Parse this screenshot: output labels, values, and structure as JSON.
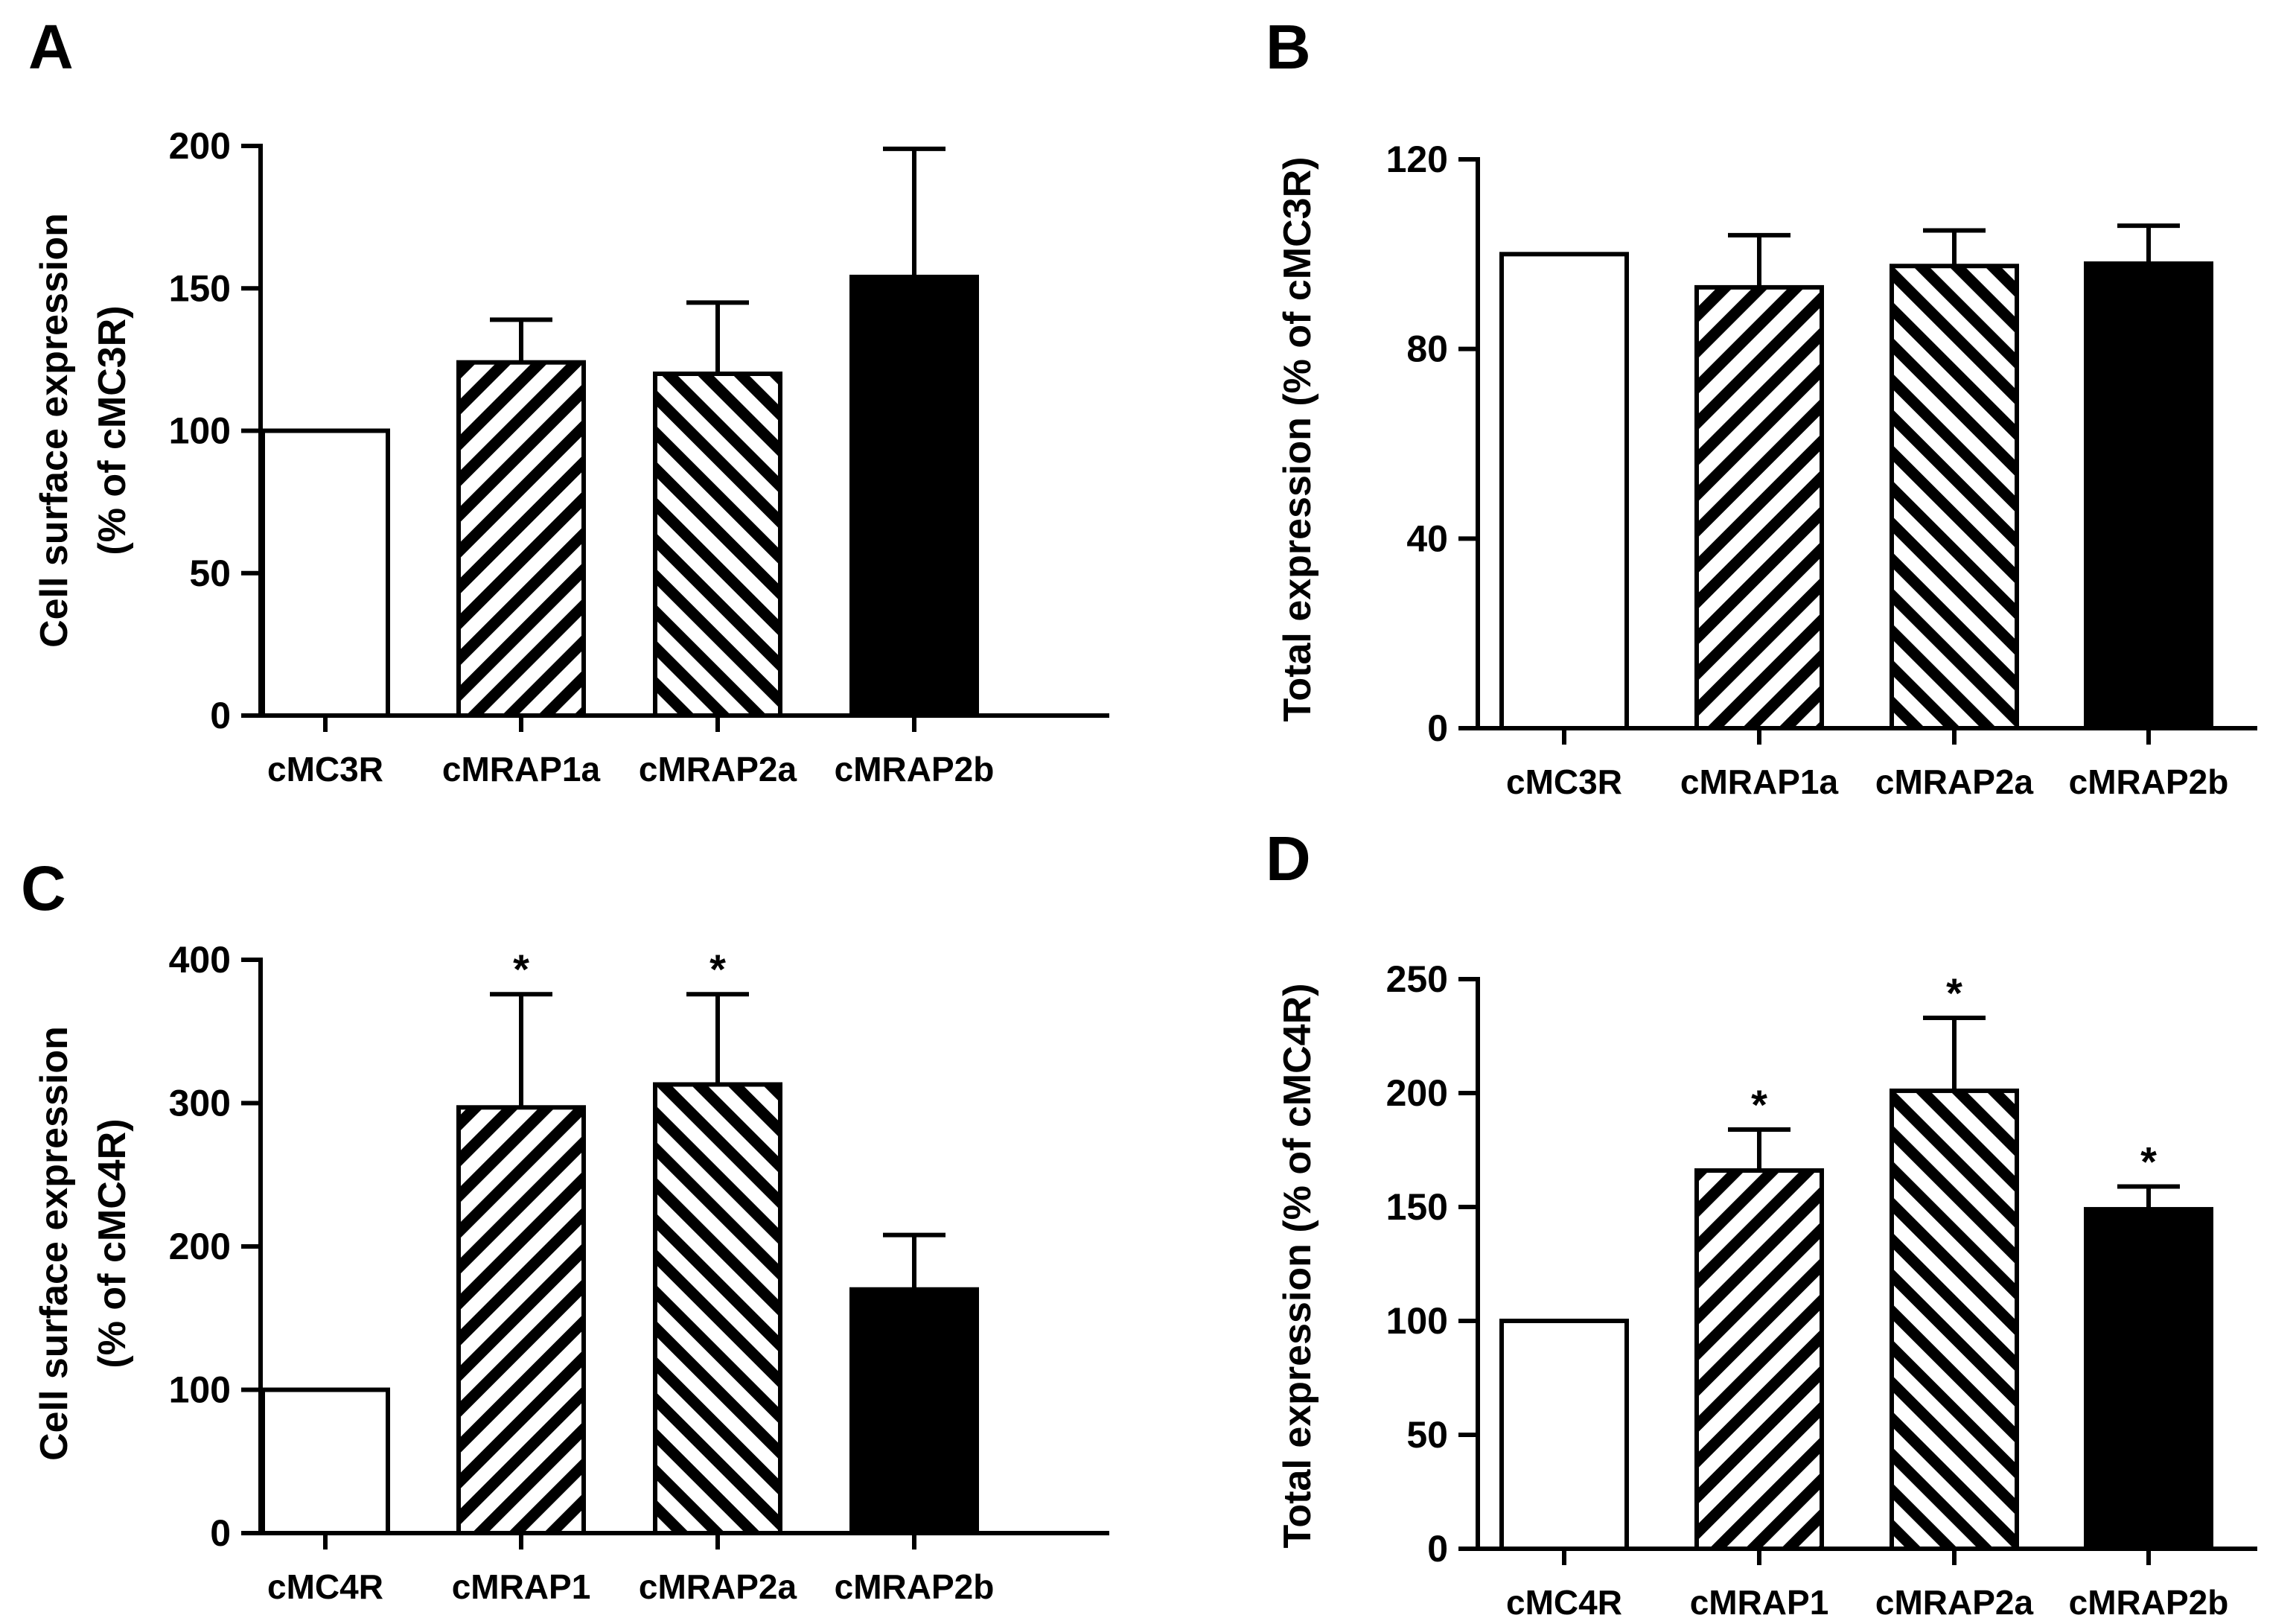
{
  "chart_data": [
    {
      "panel": "A",
      "type": "bar",
      "ylabel_line1": "Cell surface expression",
      "ylabel_line2": "(% of cMC3R)",
      "ylim": [
        0,
        200
      ],
      "yticks": [
        "0",
        "50",
        "100",
        "150",
        "200"
      ],
      "categories": [
        "cMC3R",
        "cMRAP1a",
        "cMRAP2a",
        "cMRAP2b"
      ],
      "values": [
        100,
        124,
        120,
        154
      ],
      "errors": [
        0,
        15,
        25,
        45
      ],
      "significance": [
        "",
        "",
        "",
        ""
      ],
      "fills": [
        "white",
        "hatch-right",
        "hatch-left",
        "black"
      ]
    },
    {
      "panel": "B",
      "type": "bar",
      "ylabel_line1": "Total expression (% of cMC3R)",
      "ylabel_line2": "",
      "ylim": [
        0,
        120
      ],
      "yticks": [
        "0",
        "40",
        "80",
        "120"
      ],
      "categories": [
        "cMC3R",
        "cMRAP1a",
        "cMRAP2a",
        "cMRAP2b"
      ],
      "values": [
        100,
        93,
        97.5,
        98
      ],
      "errors": [
        0,
        11,
        7.5,
        8
      ],
      "significance": [
        "",
        "",
        "",
        ""
      ],
      "fills": [
        "white",
        "hatch-right",
        "hatch-left",
        "black"
      ]
    },
    {
      "panel": "C",
      "type": "bar",
      "ylabel_line1": "Cell surface expression",
      "ylabel_line2": "(% of cMC4R)",
      "ylim": [
        0,
        400
      ],
      "yticks": [
        "0",
        "100",
        "200",
        "300",
        "400"
      ],
      "categories": [
        "cMC4R",
        "cMRAP1",
        "cMRAP2a",
        "cMRAP2b"
      ],
      "values": [
        100,
        297,
        313,
        170
      ],
      "errors": [
        0,
        79,
        63,
        38
      ],
      "significance": [
        "",
        "*",
        "*",
        ""
      ],
      "fills": [
        "white",
        "hatch-right",
        "hatch-left",
        "black"
      ]
    },
    {
      "panel": "D",
      "type": "bar",
      "ylabel_line1": "Total expression (% of cMC4R)",
      "ylabel_line2": "",
      "ylim": [
        0,
        250
      ],
      "yticks": [
        "0",
        "50",
        "100",
        "150",
        "200",
        "250"
      ],
      "categories": [
        "cMC4R",
        "cMRAP1",
        "cMRAP2a",
        "cMRAP2b"
      ],
      "values": [
        100,
        166,
        201,
        149
      ],
      "errors": [
        0,
        18,
        32,
        10
      ],
      "significance": [
        "",
        "*",
        "*",
        "*"
      ],
      "fills": [
        "white",
        "hatch-right",
        "hatch-left",
        "black"
      ]
    }
  ]
}
